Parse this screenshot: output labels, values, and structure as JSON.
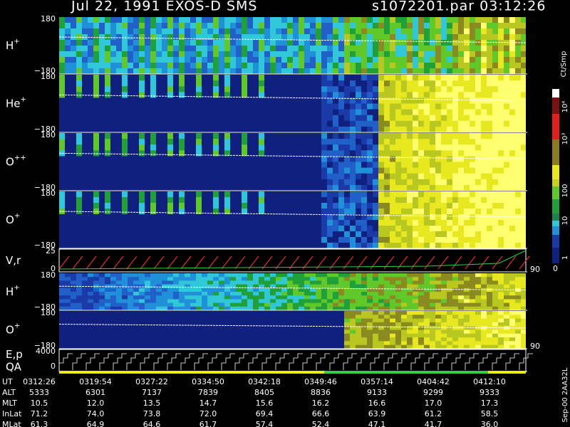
{
  "header": {
    "title": "Jul 22, 1991    EXOS-D SMS",
    "file_time": "s1072201.par  03:12:26"
  },
  "panels": [
    {
      "label": "H",
      "sup": "+",
      "top": "180",
      "bottom": "−180"
    },
    {
      "label": "He",
      "sup": "+",
      "top": "180",
      "bottom": "−180"
    },
    {
      "label": "O",
      "sup": "++",
      "top": "180",
      "bottom": "−180"
    },
    {
      "label": "O",
      "sup": "+",
      "top": "180",
      "bottom": "−180"
    },
    {
      "label": "V,r",
      "sup": "",
      "top": "25",
      "bottom": "0",
      "right": "90"
    },
    {
      "label": "H",
      "sup": "+",
      "top": "180",
      "bottom": "−180"
    },
    {
      "label": "O",
      "sup": "+",
      "top": "180",
      "bottom": "−180",
      "right": "90"
    },
    {
      "label": "E,p",
      "sup": "",
      "label2": "QA",
      "top": "4000",
      "bottom": "0"
    }
  ],
  "colorbar": {
    "unit": "Ct/Smp",
    "labels": [
      "10⁴",
      "10³",
      "100",
      "10",
      "1"
    ],
    "zero": "0"
  },
  "side_note": "Sep-00  2AA32L",
  "footer": {
    "rows": [
      {
        "name": "UT",
        "values": [
          "0312:26",
          "0319:54",
          "0327:22",
          "0334:50",
          "0342:18",
          "0349:46",
          "0357:14",
          "0404:42",
          "0412:10"
        ]
      },
      {
        "name": "ALT",
        "values": [
          "5333",
          "6301",
          "7137",
          "7839",
          "8405",
          "8836",
          "9133",
          "9299",
          "9333"
        ]
      },
      {
        "name": "MLT",
        "values": [
          "10.5",
          "12.0",
          "13.5",
          "14.7",
          "15.6",
          "16.2",
          "16.6",
          "17.0",
          "17.3"
        ]
      },
      {
        "name": "InLat",
        "values": [
          "71.2",
          "74.0",
          "73.8",
          "72.0",
          "69.4",
          "66.6",
          "63.9",
          "61.2",
          "58.5"
        ]
      },
      {
        "name": "MLat",
        "values": [
          "61.3",
          "64.9",
          "64.6",
          "61.7",
          "57.4",
          "52.4",
          "47.1",
          "41.7",
          "36.0"
        ]
      }
    ]
  }
}
